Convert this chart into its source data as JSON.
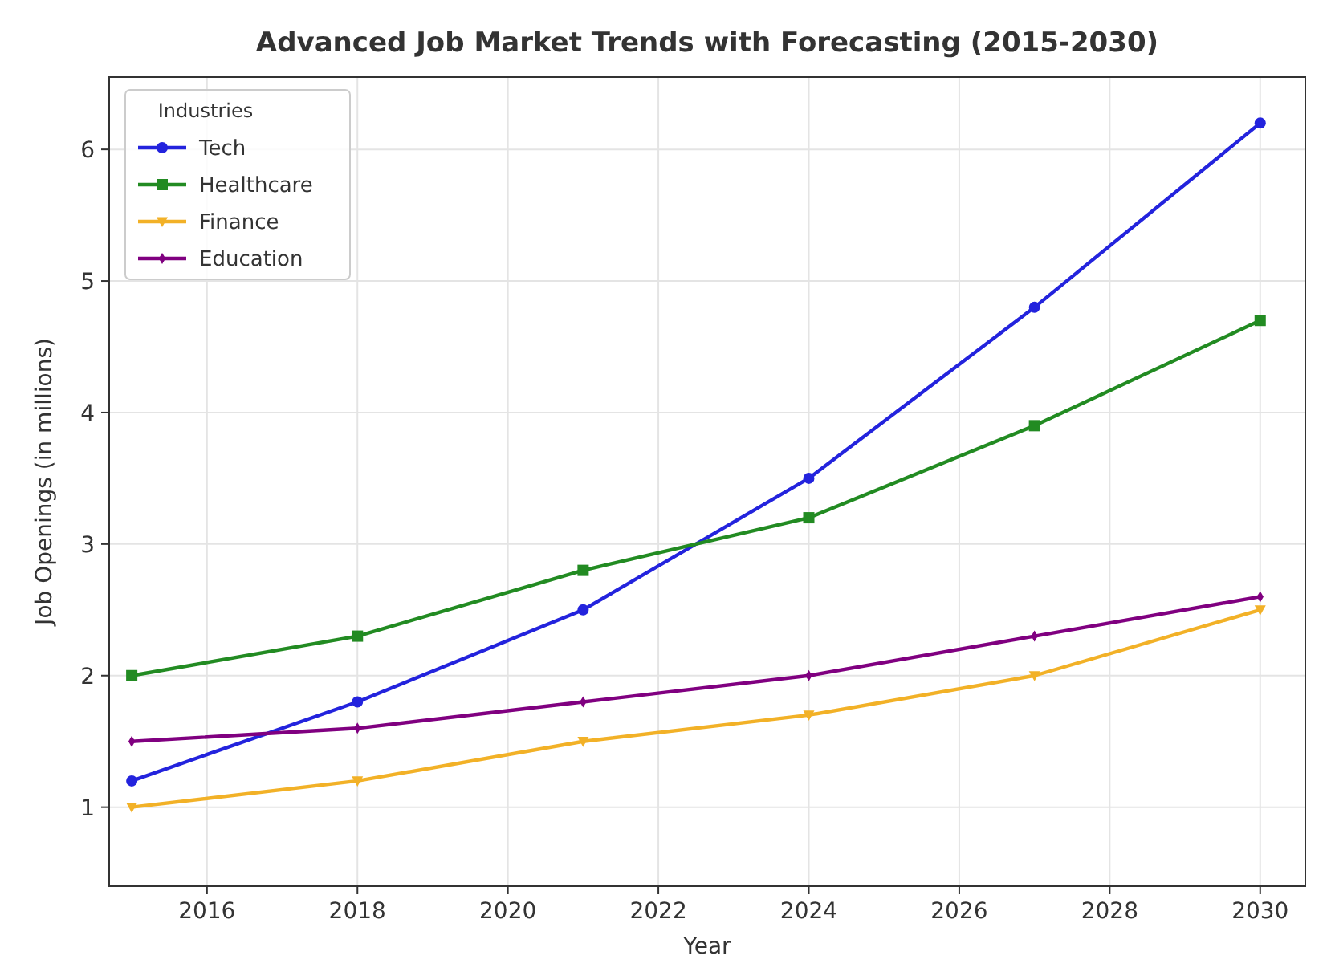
{
  "chart_data": {
    "type": "line",
    "title": "Advanced Job Market Trends with Forecasting (2015-2030)",
    "xlabel": "Year",
    "ylabel": "Job Openings (in millions)",
    "legend_title": "Industries",
    "legend": "top left",
    "grid": true,
    "line_style": "solid",
    "x": [
      2015,
      2018,
      2021,
      2024,
      2027,
      2030
    ],
    "xlim": [
      2014.7,
      2030.6
    ],
    "xticks": [
      2016,
      2018,
      2020,
      2022,
      2024,
      2026,
      2028,
      2030
    ],
    "ylim": [
      0.4,
      6.55
    ],
    "yticks": [
      1,
      2,
      3,
      4,
      5,
      6
    ],
    "series": [
      {
        "name": "Tech",
        "color": "#2323dd",
        "marker": "circle",
        "values": [
          1.2,
          1.8,
          2.5,
          3.5,
          4.8,
          6.2
        ]
      },
      {
        "name": "Healthcare",
        "color": "#228b22",
        "marker": "square",
        "values": [
          2.0,
          2.3,
          2.8,
          3.2,
          3.9,
          4.7
        ]
      },
      {
        "name": "Finance",
        "color": "#f2b127",
        "marker": "triangle",
        "values": [
          1.0,
          1.2,
          1.5,
          1.7,
          2.0,
          2.5
        ]
      },
      {
        "name": "Education",
        "color": "#800080",
        "marker": "diamond",
        "values": [
          1.5,
          1.6,
          1.8,
          2.0,
          2.3,
          2.6
        ]
      }
    ]
  }
}
